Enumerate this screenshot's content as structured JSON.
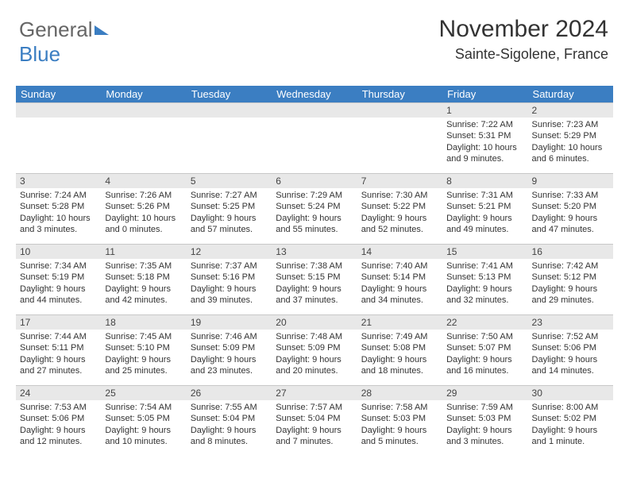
{
  "brand": {
    "part1": "General",
    "part2": "Blue"
  },
  "header": {
    "month": "November 2024",
    "location": "Sainte-Sigolene, France"
  },
  "weekdays": [
    "Sunday",
    "Monday",
    "Tuesday",
    "Wednesday",
    "Thursday",
    "Friday",
    "Saturday"
  ],
  "colors": {
    "header_bg": "#3b7ec2",
    "daybar_bg": "#e8e8e8"
  },
  "days": [
    null,
    null,
    null,
    null,
    null,
    {
      "n": "1",
      "sr": "7:22 AM",
      "ss": "5:31 PM",
      "dl": "10 hours and 9 minutes."
    },
    {
      "n": "2",
      "sr": "7:23 AM",
      "ss": "5:29 PM",
      "dl": "10 hours and 6 minutes."
    },
    {
      "n": "3",
      "sr": "7:24 AM",
      "ss": "5:28 PM",
      "dl": "10 hours and 3 minutes."
    },
    {
      "n": "4",
      "sr": "7:26 AM",
      "ss": "5:26 PM",
      "dl": "10 hours and 0 minutes."
    },
    {
      "n": "5",
      "sr": "7:27 AM",
      "ss": "5:25 PM",
      "dl": "9 hours and 57 minutes."
    },
    {
      "n": "6",
      "sr": "7:29 AM",
      "ss": "5:24 PM",
      "dl": "9 hours and 55 minutes."
    },
    {
      "n": "7",
      "sr": "7:30 AM",
      "ss": "5:22 PM",
      "dl": "9 hours and 52 minutes."
    },
    {
      "n": "8",
      "sr": "7:31 AM",
      "ss": "5:21 PM",
      "dl": "9 hours and 49 minutes."
    },
    {
      "n": "9",
      "sr": "7:33 AM",
      "ss": "5:20 PM",
      "dl": "9 hours and 47 minutes."
    },
    {
      "n": "10",
      "sr": "7:34 AM",
      "ss": "5:19 PM",
      "dl": "9 hours and 44 minutes."
    },
    {
      "n": "11",
      "sr": "7:35 AM",
      "ss": "5:18 PM",
      "dl": "9 hours and 42 minutes."
    },
    {
      "n": "12",
      "sr": "7:37 AM",
      "ss": "5:16 PM",
      "dl": "9 hours and 39 minutes."
    },
    {
      "n": "13",
      "sr": "7:38 AM",
      "ss": "5:15 PM",
      "dl": "9 hours and 37 minutes."
    },
    {
      "n": "14",
      "sr": "7:40 AM",
      "ss": "5:14 PM",
      "dl": "9 hours and 34 minutes."
    },
    {
      "n": "15",
      "sr": "7:41 AM",
      "ss": "5:13 PM",
      "dl": "9 hours and 32 minutes."
    },
    {
      "n": "16",
      "sr": "7:42 AM",
      "ss": "5:12 PM",
      "dl": "9 hours and 29 minutes."
    },
    {
      "n": "17",
      "sr": "7:44 AM",
      "ss": "5:11 PM",
      "dl": "9 hours and 27 minutes."
    },
    {
      "n": "18",
      "sr": "7:45 AM",
      "ss": "5:10 PM",
      "dl": "9 hours and 25 minutes."
    },
    {
      "n": "19",
      "sr": "7:46 AM",
      "ss": "5:09 PM",
      "dl": "9 hours and 23 minutes."
    },
    {
      "n": "20",
      "sr": "7:48 AM",
      "ss": "5:09 PM",
      "dl": "9 hours and 20 minutes."
    },
    {
      "n": "21",
      "sr": "7:49 AM",
      "ss": "5:08 PM",
      "dl": "9 hours and 18 minutes."
    },
    {
      "n": "22",
      "sr": "7:50 AM",
      "ss": "5:07 PM",
      "dl": "9 hours and 16 minutes."
    },
    {
      "n": "23",
      "sr": "7:52 AM",
      "ss": "5:06 PM",
      "dl": "9 hours and 14 minutes."
    },
    {
      "n": "24",
      "sr": "7:53 AM",
      "ss": "5:06 PM",
      "dl": "9 hours and 12 minutes."
    },
    {
      "n": "25",
      "sr": "7:54 AM",
      "ss": "5:05 PM",
      "dl": "9 hours and 10 minutes."
    },
    {
      "n": "26",
      "sr": "7:55 AM",
      "ss": "5:04 PM",
      "dl": "9 hours and 8 minutes."
    },
    {
      "n": "27",
      "sr": "7:57 AM",
      "ss": "5:04 PM",
      "dl": "9 hours and 7 minutes."
    },
    {
      "n": "28",
      "sr": "7:58 AM",
      "ss": "5:03 PM",
      "dl": "9 hours and 5 minutes."
    },
    {
      "n": "29",
      "sr": "7:59 AM",
      "ss": "5:03 PM",
      "dl": "9 hours and 3 minutes."
    },
    {
      "n": "30",
      "sr": "8:00 AM",
      "ss": "5:02 PM",
      "dl": "9 hours and 1 minute."
    }
  ],
  "labels": {
    "sunrise": "Sunrise: ",
    "sunset": "Sunset: ",
    "daylight": "Daylight: "
  }
}
